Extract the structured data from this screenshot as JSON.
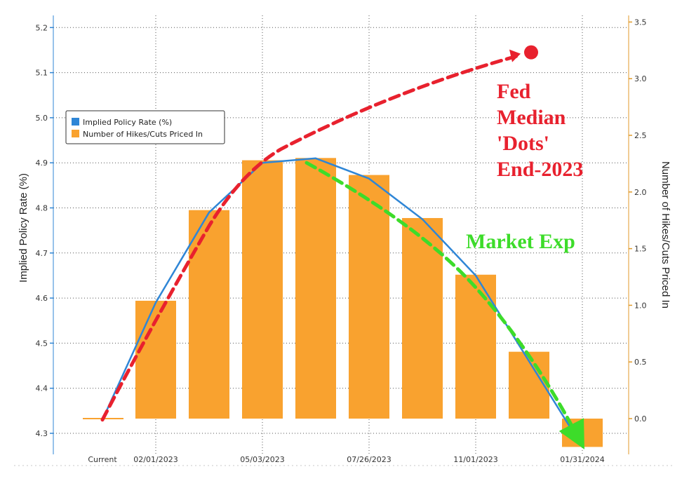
{
  "chart_data": {
    "type": "bar",
    "left_axis": {
      "label": "Implied Policy Rate (%)",
      "ylim": [
        4.28,
        5.22
      ],
      "ticks": [
        "4.3",
        "4.4",
        "4.5",
        "4.6",
        "4.7",
        "4.8",
        "4.9",
        "5.0",
        "5.1",
        "5.2"
      ]
    },
    "right_axis": {
      "label": "Number of Hikes/Cuts Priced In",
      "ylim": [
        -0.25,
        3.55
      ],
      "ticks": [
        "0.0",
        "0.5",
        "1.0",
        "1.5",
        "2.0",
        "2.5",
        "3.0",
        "3.5"
      ]
    },
    "x_labels": [
      "Current",
      "02/01/2023",
      "05/03/2023",
      "07/26/2023",
      "11/01/2023",
      "01/31/2024"
    ],
    "bar_series": {
      "name": "Number of Hikes/Cuts Priced In",
      "color": "#f9a22f",
      "values": [
        0.0,
        1.04,
        1.84,
        2.28,
        2.3,
        2.15,
        1.77,
        1.27,
        0.59,
        -0.25
      ]
    },
    "line_series": {
      "name": "Implied Policy Rate (%)",
      "color": "#2f86d6",
      "values": [
        4.33,
        4.59,
        4.79,
        4.9,
        4.91,
        4.865,
        4.775,
        4.65,
        4.46,
        4.27
      ]
    },
    "legend": {
      "position": "top-left",
      "entries": [
        "Implied Policy Rate (%)",
        "Number of Hikes/Cuts Priced In"
      ]
    },
    "grid": true,
    "annotations": {
      "fed": {
        "lines": [
          "Fed",
          "Median",
          "'Dots'",
          "End-2023"
        ],
        "color": "#e8212e",
        "dot_value": 5.145
      },
      "market": {
        "text": "Market Exp",
        "color": "#3ddc2a"
      }
    }
  }
}
